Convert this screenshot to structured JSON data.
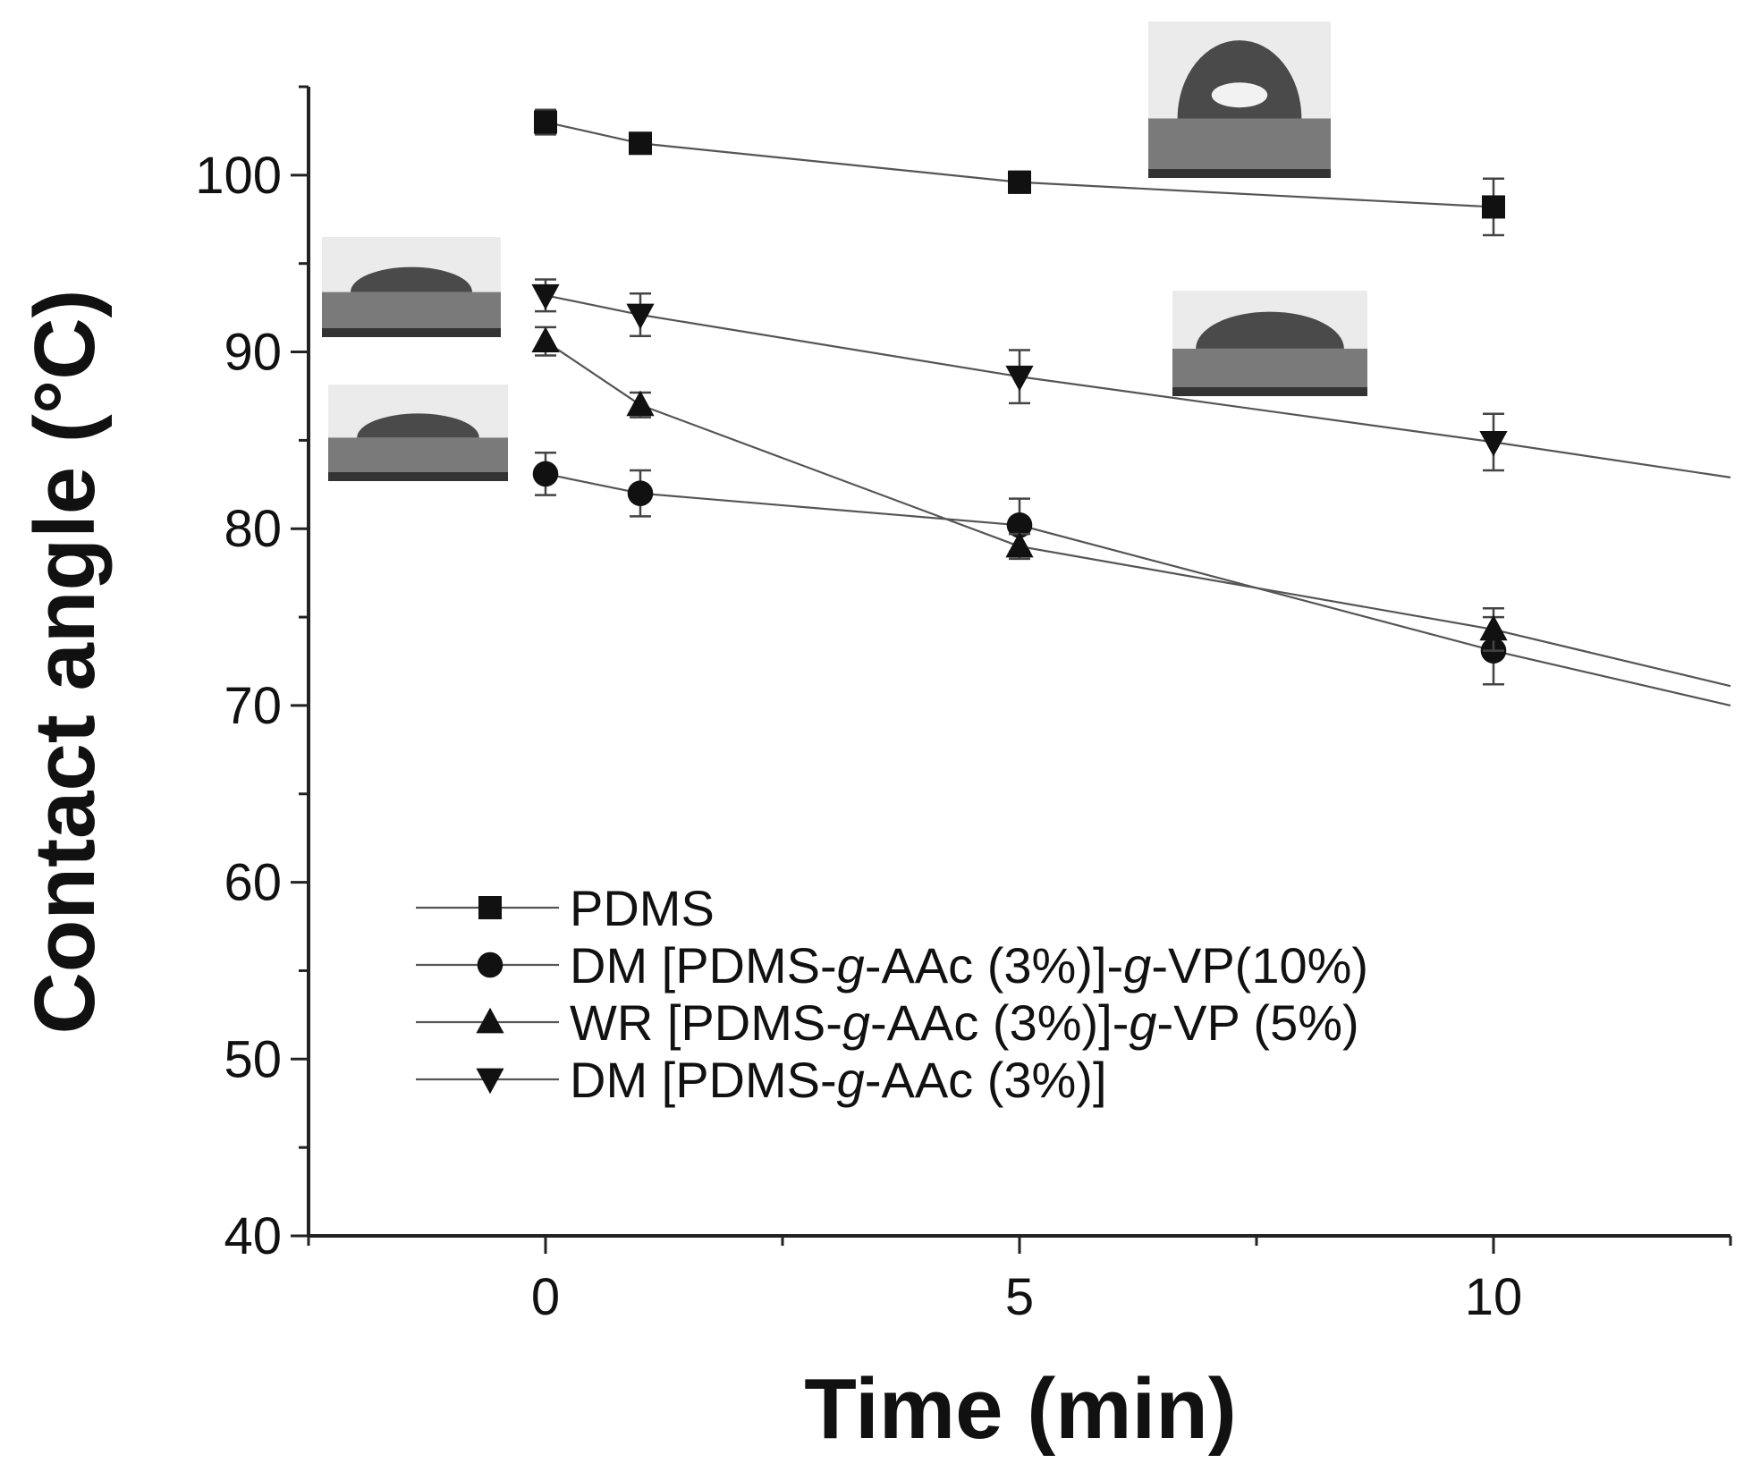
{
  "chart_data": {
    "type": "line",
    "title": "",
    "xlabel": "Time (min)",
    "ylabel": "Contact angle (°C)",
    "xlim": [
      -2.5,
      12.5
    ],
    "ylim": [
      40,
      105
    ],
    "xticks": [
      0,
      5,
      10
    ],
    "yticks": [
      40,
      50,
      60,
      70,
      80,
      90,
      100
    ],
    "x_tick_labels": [
      "0",
      "5",
      "10"
    ],
    "y_tick_labels": [
      "40",
      "50",
      "60",
      "70",
      "80",
      "90",
      "100"
    ],
    "legend_position": "lower-left",
    "series": [
      {
        "name": "PDMS",
        "legend_parts": [
          {
            "t": "PDMS",
            "i": false
          }
        ],
        "marker": "square",
        "x": [
          0,
          1,
          5,
          10
        ],
        "values": [
          103.0,
          101.8,
          99.6,
          98.2
        ],
        "errors": [
          0.7,
          0.5,
          0.6,
          1.6
        ],
        "trend_end": [
          10,
          98.2
        ]
      },
      {
        "name": "DM [PDMS-g-AAc (3%)]-g-VP(10%)",
        "legend_parts": [
          {
            "t": "DM [PDMS-",
            "i": false
          },
          {
            "t": "g",
            "i": true
          },
          {
            "t": "-AAc (3%)]-",
            "i": false
          },
          {
            "t": "g",
            "i": true
          },
          {
            "t": "-VP(10%)",
            "i": false
          }
        ],
        "marker": "circle",
        "x": [
          0,
          1,
          5,
          10
        ],
        "values": [
          83.1,
          82.0,
          80.2,
          73.1
        ],
        "errors": [
          1.2,
          1.3,
          1.5,
          1.9
        ],
        "trend_end": [
          12.5,
          70.0
        ]
      },
      {
        "name": "WR [PDMS-g-AAc (3%)]-g-VP (5%)",
        "legend_parts": [
          {
            "t": "WR [PDMS-",
            "i": false
          },
          {
            "t": "g",
            "i": true
          },
          {
            "t": "-AAc (3%)]-",
            "i": false
          },
          {
            "t": "g",
            "i": true
          },
          {
            "t": "-VP (5%)",
            "i": false
          }
        ],
        "marker": "triangle-up",
        "x": [
          0,
          1,
          5,
          10
        ],
        "values": [
          90.6,
          87.0,
          79.0,
          74.3
        ],
        "errors": [
          0.8,
          0.7,
          0.7,
          1.2
        ],
        "trend_end": [
          12.5,
          71.1
        ]
      },
      {
        "name": "DM [PDMS-g-AAc (3%)]",
        "legend_parts": [
          {
            "t": "DM [PDMS-",
            "i": false
          },
          {
            "t": "g",
            "i": true
          },
          {
            "t": "-AAc (3%)]",
            "i": false
          }
        ],
        "marker": "triangle-down",
        "x": [
          0,
          1,
          5,
          10
        ],
        "values": [
          93.2,
          92.1,
          88.6,
          84.9
        ],
        "errors": [
          0.9,
          1.2,
          1.5,
          1.6
        ],
        "trend_end": [
          12.5,
          82.9
        ]
      }
    ],
    "droplet_images": [
      "pdms-droplet",
      "dm-aac-droplet",
      "dm-vp10-droplet",
      "wr-vp5-droplet"
    ]
  }
}
